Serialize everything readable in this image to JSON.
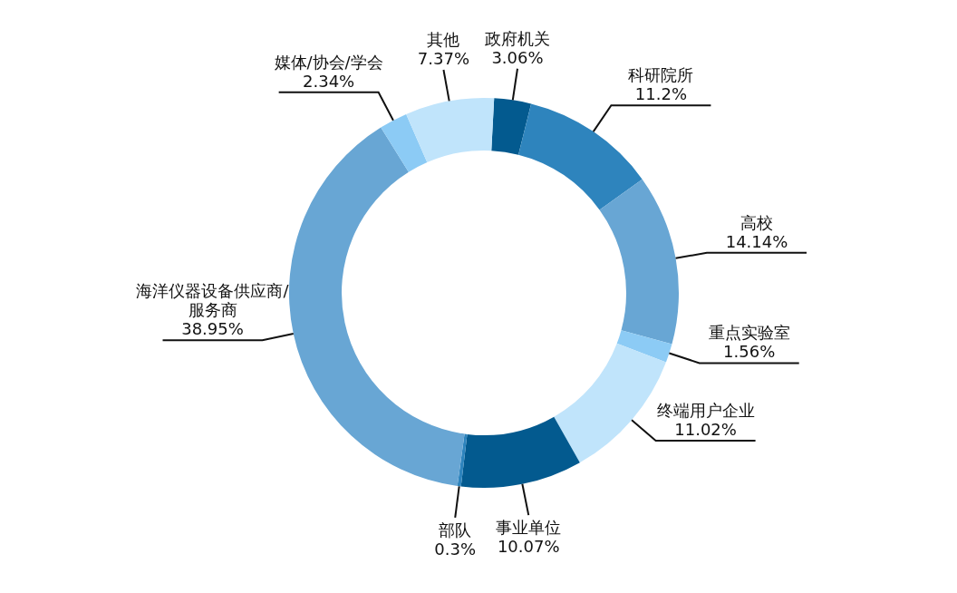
{
  "chart_data": {
    "type": "donut",
    "categories": [
      "政府机关",
      "科研院所",
      "高校",
      "重点实验室",
      "终端用户企业",
      "事业单位",
      "部队",
      "海洋仪器设备供应商/服务商",
      "媒体/协会/学会",
      "其他"
    ],
    "values": [
      3.06,
      11.2,
      14.14,
      1.56,
      11.02,
      10.07,
      0.3,
      38.95,
      2.34,
      7.37
    ],
    "value_labels": [
      "3.06%",
      "11.2%",
      "14.14%",
      "1.56%",
      "11.02%",
      "10.07%",
      "0.3%",
      "38.95%",
      "2.34%",
      "7.37%"
    ],
    "colors": [
      "#035a8f",
      "#2e84bd",
      "#68a6d4",
      "#8ccbf5",
      "#c0e4fb",
      "#035a8f",
      "#2e84bd",
      "#68a6d4",
      "#8ccbf5",
      "#c0e4fb"
    ],
    "legend": false
  }
}
